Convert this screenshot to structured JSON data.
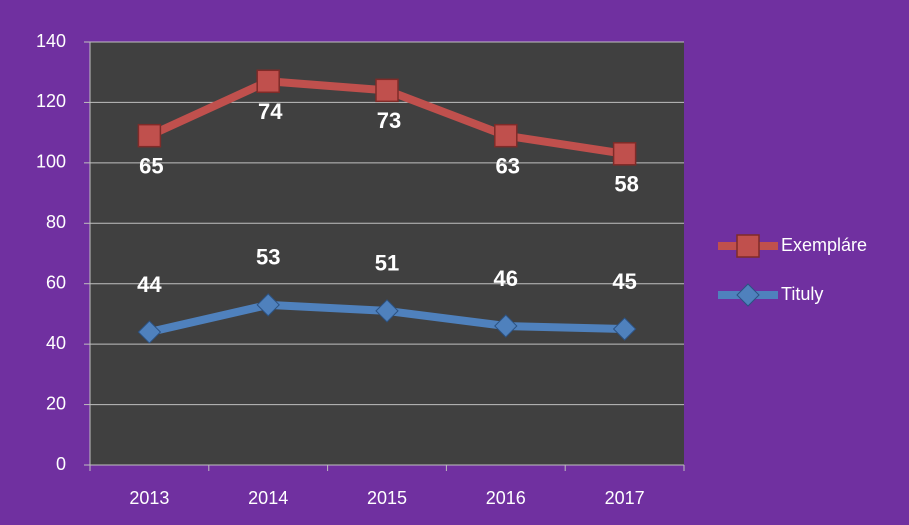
{
  "chart_data": {
    "type": "line",
    "stacked": true,
    "categories": [
      "2013",
      "2014",
      "2015",
      "2016",
      "2017"
    ],
    "series": [
      {
        "name": "Tituly",
        "color": "#4f81bd",
        "marker": "diamond",
        "values": [
          44,
          53,
          51,
          46,
          45
        ]
      },
      {
        "name": "Exempláre",
        "color": "#c0504d",
        "marker": "square",
        "values": [
          65,
          74,
          73,
          63,
          58
        ]
      }
    ],
    "ylim": [
      0,
      140
    ],
    "yticks": [
      0,
      20,
      40,
      60,
      80,
      100,
      120,
      140
    ],
    "grid": true,
    "legend": "right"
  }
}
